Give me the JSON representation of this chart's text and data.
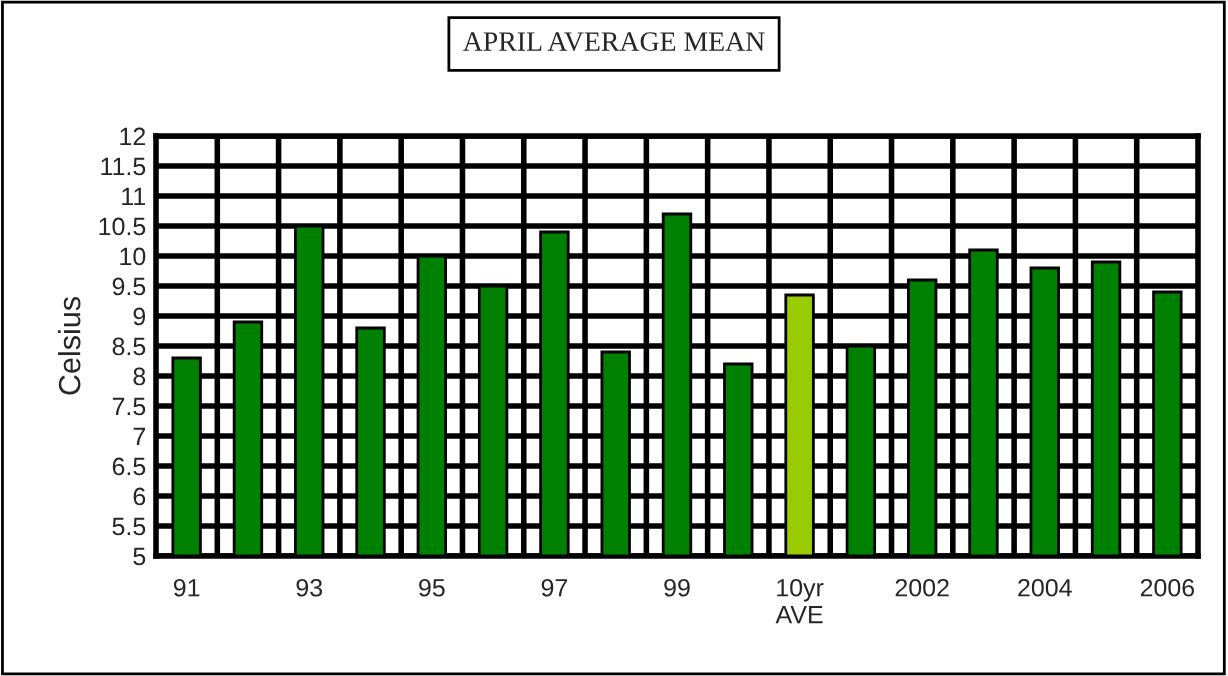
{
  "chart_data": {
    "type": "bar",
    "title": "APRIL AVERAGE MEAN",
    "ylabel": "Celsius",
    "categories": [
      "91",
      null,
      "93",
      null,
      "95",
      null,
      "97",
      null,
      "99",
      null,
      "10yr\nAVE",
      null,
      "2002",
      null,
      "2004",
      null,
      "2006"
    ],
    "values": [
      8.3,
      8.9,
      10.5,
      8.8,
      10.0,
      9.5,
      10.4,
      8.4,
      10.7,
      8.2,
      9.35,
      8.5,
      9.6,
      10.1,
      9.8,
      9.9,
      9.4
    ],
    "colors": [
      "#008000",
      "#008000",
      "#008000",
      "#008000",
      "#008000",
      "#008000",
      "#008000",
      "#008000",
      "#008000",
      "#008000",
      "#99cc00",
      "#008000",
      "#008000",
      "#008000",
      "#008000",
      "#008000",
      "#008000"
    ],
    "ylim": [
      5,
      12
    ],
    "yticks": [
      5,
      5.5,
      6,
      6.5,
      7,
      7.5,
      8,
      8.5,
      9,
      9.5,
      10,
      10.5,
      11,
      11.5,
      12
    ],
    "grid": true
  }
}
